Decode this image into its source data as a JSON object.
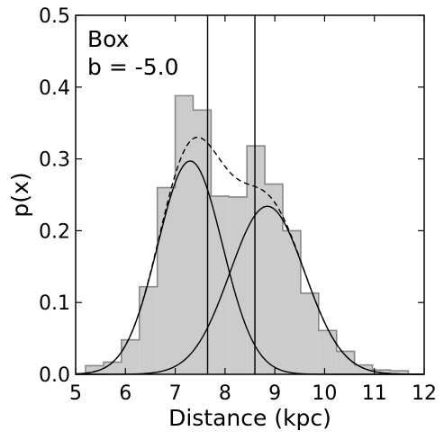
{
  "chart_data": {
    "type": "histogram",
    "xlabel": "Distance (kpc)",
    "ylabel": "p(x)",
    "xlim": [
      5,
      12
    ],
    "ylim": [
      0,
      0.5
    ],
    "xticks": [
      "5",
      "6",
      "7",
      "8",
      "9",
      "10",
      "11",
      "12"
    ],
    "yticks": [
      "0.0",
      "0.1",
      "0.2",
      "0.3",
      "0.4",
      "0.5"
    ],
    "annotation": [
      "Box",
      "b = -5.0"
    ],
    "histogram": {
      "bin_edges": [
        5.2,
        5.56,
        5.92,
        6.28,
        6.64,
        7.0,
        7.36,
        7.72,
        8.08,
        8.44,
        8.8,
        9.16,
        9.52,
        9.88,
        10.24,
        10.6,
        10.96,
        11.32,
        11.68
      ],
      "values": [
        0.012,
        0.017,
        0.048,
        0.122,
        0.26,
        0.388,
        0.368,
        0.248,
        0.247,
        0.318,
        0.265,
        0.2,
        0.113,
        0.061,
        0.032,
        0.013,
        0.006,
        0.005
      ],
      "fill": "#cccccc",
      "edge": "#888888"
    },
    "components": [
      {
        "mean": 7.3,
        "sigma": 0.65,
        "amplitude": 0.297
      },
      {
        "mean": 8.85,
        "sigma": 0.75,
        "amplitude": 0.234
      }
    ],
    "total_curve": {
      "style": "dashed"
    },
    "vlines": [
      7.65,
      8.6
    ]
  }
}
